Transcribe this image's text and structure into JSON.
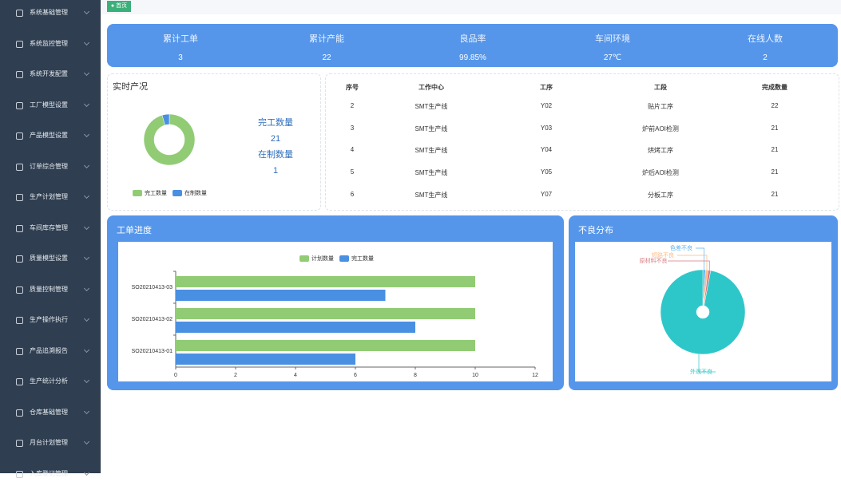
{
  "sidebar": {
    "items": [
      "系统基础管理",
      "系统监控管理",
      "系统开发配置",
      "工厂模型设置",
      "产品模型设置",
      "订单综合管理",
      "生产计划管理",
      "车间库存管理",
      "质量模型设置",
      "质量控制管理",
      "生产操作执行",
      "产品追溯报告",
      "生产统计分析",
      "仓库基础管理",
      "月台计划管理",
      "入库登记管理"
    ]
  },
  "tab": {
    "label": "首页"
  },
  "stats": [
    {
      "label": "累计工单",
      "value": "3"
    },
    {
      "label": "累计产能",
      "value": "22"
    },
    {
      "label": "良品率",
      "value": "99.85%"
    },
    {
      "label": "车间环境",
      "value": "27℃"
    },
    {
      "label": "在线人数",
      "value": "2"
    }
  ],
  "table": {
    "headers": [
      "序号",
      "工作中心",
      "工序",
      "工段",
      "完成数量"
    ],
    "rows": [
      [
        2,
        "SMT生产线",
        "Y02",
        "贴片工序",
        22
      ],
      [
        3,
        "SMT生产线",
        "Y03",
        "炉前AOI检测",
        21
      ],
      [
        4,
        "SMT生产线",
        "Y04",
        "烘烤工序",
        21
      ],
      [
        5,
        "SMT生产线",
        "Y05",
        "炉后AOI检测",
        21
      ],
      [
        6,
        "SMT生产线",
        "Y07",
        "分板工序",
        21
      ]
    ]
  },
  "chart_data": [
    {
      "type": "pie",
      "title": "实时产况",
      "categories": [
        "完工数量",
        "在制数量"
      ],
      "values": [
        21,
        1
      ],
      "colors": [
        "#91cc75",
        "#4a90e2"
      ]
    },
    {
      "type": "bar",
      "orientation": "horizontal",
      "title": "工单进度",
      "categories": [
        "SO20210413-01",
        "SO20210413-02",
        "SO20210413-03"
      ],
      "series": [
        {
          "name": "计划数量",
          "color": "#91cc75",
          "values": [
            10,
            10,
            10
          ]
        },
        {
          "name": "完工数量",
          "color": "#4a90e2",
          "values": [
            6,
            8,
            7
          ]
        }
      ],
      "xlim": [
        0,
        12
      ],
      "xticks": [
        0,
        2,
        4,
        6,
        8,
        10,
        12
      ]
    },
    {
      "type": "pie",
      "title": "不良分布",
      "categories": [
        "色差不良",
        "短路不良",
        "原材料不良",
        "外观不良"
      ],
      "values": [
        1,
        1,
        1,
        97
      ],
      "colors": [
        "#5ab1ef",
        "#ffb980",
        "#d87a80",
        "#2ec7c9"
      ]
    }
  ]
}
